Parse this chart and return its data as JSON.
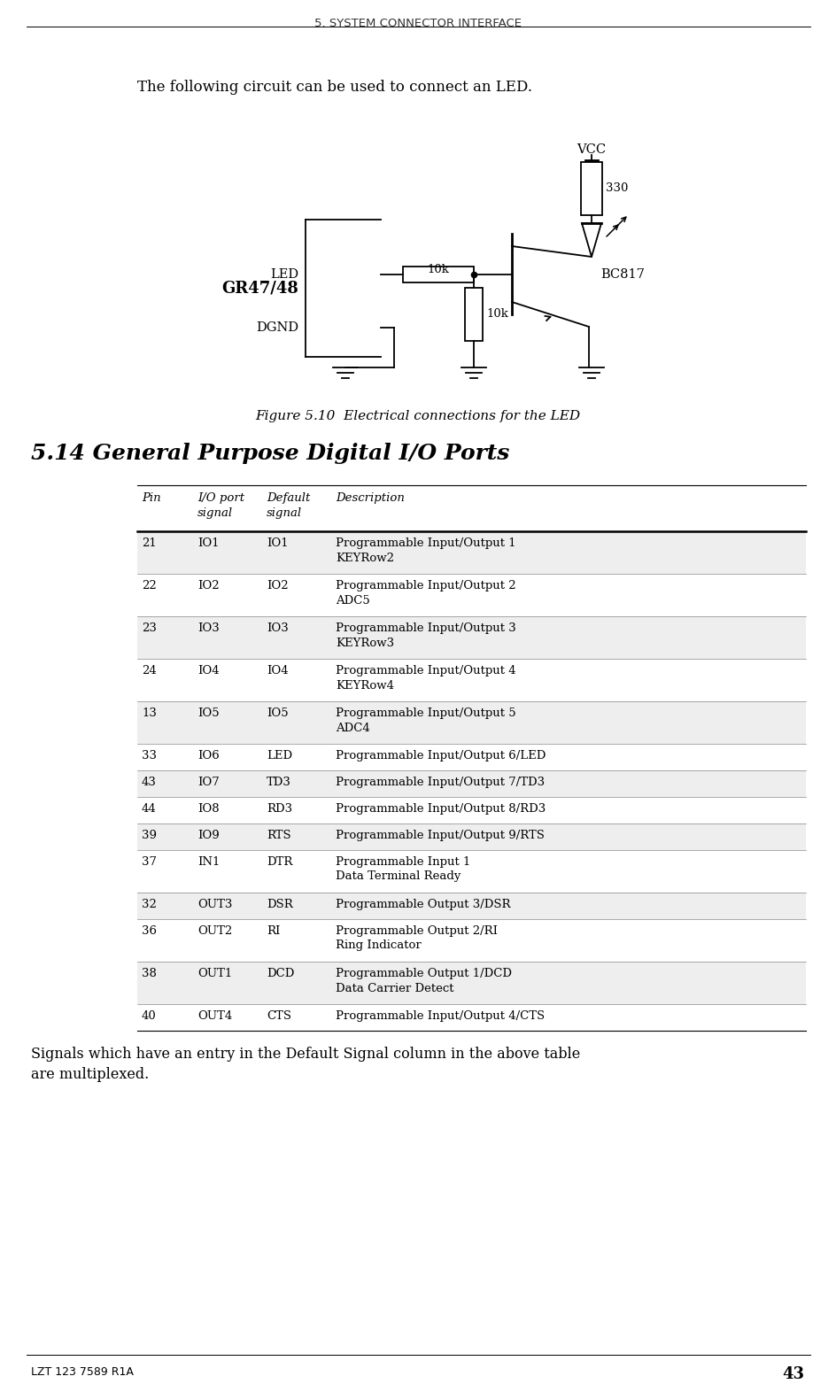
{
  "page_title": "5. SYSTEM CONNECTOR INTERFACE",
  "page_number": "43",
  "footer_left": "LZT 123 7589 R1A",
  "intro_text": "The following circuit can be used to connect an LED.",
  "figure_caption": "Figure 5.10  Electrical connections for the LED",
  "section_title": "5.14 General Purpose Digital I/O Ports",
  "table_header": [
    "Pin",
    "I/O port\nsignal",
    "Default\nsignal",
    "Description"
  ],
  "table_rows": [
    [
      "21",
      "IO1",
      "IO1",
      "Programmable Input/Output 1\nKEYRow2"
    ],
    [
      "22",
      "IO2",
      "IO2",
      "Programmable Input/Output 2\nADC5"
    ],
    [
      "23",
      "IO3",
      "IO3",
      "Programmable Input/Output 3\nKEYRow3"
    ],
    [
      "24",
      "IO4",
      "IO4",
      "Programmable Input/Output 4\nKEYRow4"
    ],
    [
      "13",
      "IO5",
      "IO5",
      "Programmable Input/Output 5\nADC4"
    ],
    [
      "33",
      "IO6",
      "LED",
      "Programmable Input/Output 6/LED"
    ],
    [
      "43",
      "IO7",
      "TD3",
      "Programmable Input/Output 7/TD3"
    ],
    [
      "44",
      "IO8",
      "RD3",
      "Programmable Input/Output 8/RD3"
    ],
    [
      "39",
      "IO9",
      "RTS",
      "Programmable Input/Output 9/RTS"
    ],
    [
      "37",
      "IN1",
      "DTR",
      "Programmable Input 1\nData Terminal Ready"
    ],
    [
      "32",
      "OUT3",
      "DSR",
      "Programmable Output 3/DSR"
    ],
    [
      "36",
      "OUT2",
      "RI",
      "Programmable Output 2/RI\nRing Indicator"
    ],
    [
      "38",
      "OUT1",
      "DCD",
      "Programmable Output 1/DCD\nData Carrier Detect"
    ],
    [
      "40",
      "OUT4",
      "CTS",
      "Programmable Input/Output 4/CTS"
    ]
  ],
  "row_shaded": [
    true,
    false,
    true,
    false,
    true,
    false,
    true,
    false,
    true,
    false,
    true,
    false,
    true,
    false
  ],
  "shade_color": "#eeeeee",
  "footer_text": "Signals which have an entry in the Default Signal column in the above table\nare multiplexed.",
  "bg_color": "#ffffff",
  "text_color": "#000000"
}
